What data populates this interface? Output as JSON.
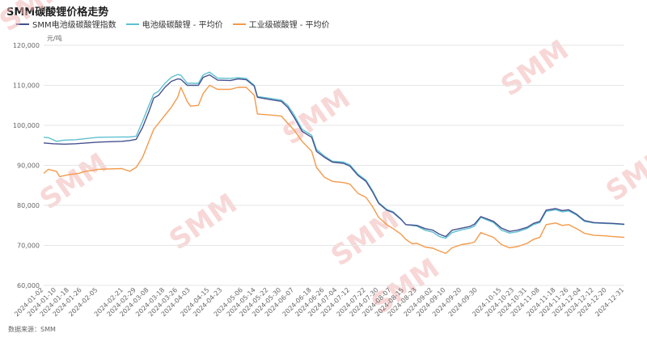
{
  "title": "SMM碳酸锂价格走势",
  "unit": "元/吨",
  "source": "数据来源：SMM",
  "watermark": "SMM",
  "colors": {
    "index": "#45518f",
    "battery": "#5fc0d0",
    "industrial": "#f39a4c",
    "grid": "#e6e6e6",
    "watermark": "#f0b0b0"
  },
  "chart_data": {
    "type": "line",
    "ylim": [
      60000,
      120000
    ],
    "yticks": [
      "60,000",
      "70,000",
      "80,000",
      "90,000",
      "100,000",
      "110,000",
      "120,000"
    ],
    "ytick_values": [
      60000,
      70000,
      80000,
      90000,
      100000,
      110000,
      120000
    ],
    "xlim": [
      "2024-01-02",
      "2024-12-31"
    ],
    "x_tick_labels": [
      "2024-01-02",
      "2024-01-10",
      "2024-01-18",
      "2024-01-26",
      "2024-02-05",
      "2024-02-21",
      "2024-02-29",
      "2024-03-08",
      "2024-03-18",
      "2024-03-26",
      "2024-04-03",
      "2024-04-15",
      "2024-04-23",
      "2024-05-06",
      "2024-05-14",
      "2024-05-22",
      "2024-05-30",
      "2024-06-07",
      "2024-06-18",
      "2024-06-26",
      "2024-07-04",
      "2024-07-12",
      "2024-07-22",
      "2024-07-30",
      "2024-08-07",
      "2024-08-15",
      "2024-08-23",
      "2024-09-02",
      "2024-09-10",
      "2024-09-20",
      "2024-09-30",
      "2024-10-15",
      "2024-10-23",
      "2024-10-31",
      "2024-11-08",
      "2024-11-18",
      "2024-11-26",
      "2024-12-04",
      "2024-12-12",
      "2024-12-20",
      "2024-12-31"
    ],
    "legend_position": "top-left",
    "grid": true,
    "series": [
      {
        "name": "SMM电池级碳酸锂指数",
        "color_key": "index",
        "points": [
          [
            "2024-01-02",
            95600
          ],
          [
            "2024-01-08",
            95400
          ],
          [
            "2024-01-15",
            95300
          ],
          [
            "2024-01-22",
            95400
          ],
          [
            "2024-01-29",
            95600
          ],
          [
            "2024-02-05",
            95800
          ],
          [
            "2024-02-20",
            96000
          ],
          [
            "2024-02-25",
            96200
          ],
          [
            "2024-02-29",
            96500
          ],
          [
            "2024-03-04",
            99500
          ],
          [
            "2024-03-08",
            103500
          ],
          [
            "2024-03-11",
            106800
          ],
          [
            "2024-03-14",
            107500
          ],
          [
            "2024-03-18",
            109500
          ],
          [
            "2024-03-22",
            111000
          ],
          [
            "2024-03-26",
            111600
          ],
          [
            "2024-03-28",
            111500
          ],
          [
            "2024-04-01",
            110000
          ],
          [
            "2024-04-08",
            110000
          ],
          [
            "2024-04-11",
            112000
          ],
          [
            "2024-04-15",
            112600
          ],
          [
            "2024-04-20",
            111300
          ],
          [
            "2024-04-28",
            111200
          ],
          [
            "2024-05-03",
            111600
          ],
          [
            "2024-05-08",
            111400
          ],
          [
            "2024-05-13",
            109800
          ],
          [
            "2024-05-15",
            107000
          ],
          [
            "2024-05-22",
            106500
          ],
          [
            "2024-05-30",
            106000
          ],
          [
            "2024-06-03",
            104500
          ],
          [
            "2024-06-07",
            102000
          ],
          [
            "2024-06-12",
            98500
          ],
          [
            "2024-06-18",
            97000
          ],
          [
            "2024-06-21",
            93500
          ],
          [
            "2024-06-26",
            92000
          ],
          [
            "2024-07-01",
            90800
          ],
          [
            "2024-07-08",
            90500
          ],
          [
            "2024-07-12",
            89800
          ],
          [
            "2024-07-17",
            87500
          ],
          [
            "2024-07-22",
            86000
          ],
          [
            "2024-07-26",
            83500
          ],
          [
            "2024-07-30",
            80500
          ],
          [
            "2024-08-04",
            78800
          ],
          [
            "2024-08-08",
            78200
          ],
          [
            "2024-08-13",
            76500
          ],
          [
            "2024-08-16",
            75200
          ],
          [
            "2024-08-23",
            75000
          ],
          [
            "2024-08-28",
            74200
          ],
          [
            "2024-09-02",
            73800
          ],
          [
            "2024-09-06",
            72800
          ],
          [
            "2024-09-10",
            72200
          ],
          [
            "2024-09-14",
            73800
          ],
          [
            "2024-09-20",
            74300
          ],
          [
            "2024-09-25",
            74700
          ],
          [
            "2024-09-28",
            75300
          ],
          [
            "2024-10-02",
            77200
          ],
          [
            "2024-10-10",
            76000
          ],
          [
            "2024-10-15",
            74300
          ],
          [
            "2024-10-20",
            73500
          ],
          [
            "2024-10-25",
            73800
          ],
          [
            "2024-10-31",
            74500
          ],
          [
            "2024-11-04",
            75500
          ],
          [
            "2024-11-08",
            76000
          ],
          [
            "2024-11-12",
            78800
          ],
          [
            "2024-11-18",
            79200
          ],
          [
            "2024-11-22",
            78700
          ],
          [
            "2024-11-26",
            78900
          ],
          [
            "2024-12-01",
            77800
          ],
          [
            "2024-12-06",
            76200
          ],
          [
            "2024-12-12",
            75700
          ],
          [
            "2024-12-18",
            75600
          ],
          [
            "2024-12-24",
            75500
          ],
          [
            "2024-12-31",
            75300
          ]
        ]
      },
      {
        "name": "电池级碳酸锂 - 平均价",
        "color_key": "battery",
        "points": [
          [
            "2024-01-02",
            97000
          ],
          [
            "2024-01-05",
            96900
          ],
          [
            "2024-01-10",
            96000
          ],
          [
            "2024-01-15",
            96300
          ],
          [
            "2024-01-22",
            96400
          ],
          [
            "2024-01-29",
            96700
          ],
          [
            "2024-02-05",
            97000
          ],
          [
            "2024-02-20",
            97100
          ],
          [
            "2024-02-25",
            97100
          ],
          [
            "2024-02-29",
            97300
          ],
          [
            "2024-03-04",
            101000
          ],
          [
            "2024-03-08",
            105000
          ],
          [
            "2024-03-11",
            107800
          ],
          [
            "2024-03-14",
            108500
          ],
          [
            "2024-03-18",
            110500
          ],
          [
            "2024-03-22",
            112000
          ],
          [
            "2024-03-26",
            112700
          ],
          [
            "2024-03-28",
            112500
          ],
          [
            "2024-04-01",
            110500
          ],
          [
            "2024-04-08",
            110500
          ],
          [
            "2024-04-11",
            112600
          ],
          [
            "2024-04-15",
            113300
          ],
          [
            "2024-04-20",
            111800
          ],
          [
            "2024-04-28",
            111700
          ],
          [
            "2024-05-03",
            111900
          ],
          [
            "2024-05-08",
            111700
          ],
          [
            "2024-05-13",
            110000
          ],
          [
            "2024-05-15",
            107200
          ],
          [
            "2024-05-22",
            106800
          ],
          [
            "2024-05-30",
            106300
          ],
          [
            "2024-06-03",
            105000
          ],
          [
            "2024-06-07",
            102600
          ],
          [
            "2024-06-12",
            99000
          ],
          [
            "2024-06-18",
            97500
          ],
          [
            "2024-06-21",
            94000
          ],
          [
            "2024-06-26",
            92300
          ],
          [
            "2024-07-01",
            91000
          ],
          [
            "2024-07-08",
            90800
          ],
          [
            "2024-07-12",
            90100
          ],
          [
            "2024-07-17",
            87800
          ],
          [
            "2024-07-22",
            86300
          ],
          [
            "2024-07-26",
            83800
          ],
          [
            "2024-07-30",
            80700
          ],
          [
            "2024-08-04",
            79000
          ],
          [
            "2024-08-08",
            78400
          ],
          [
            "2024-08-13",
            76600
          ],
          [
            "2024-08-16",
            75200
          ],
          [
            "2024-08-23",
            74800
          ],
          [
            "2024-08-28",
            73800
          ],
          [
            "2024-09-02",
            73300
          ],
          [
            "2024-09-06",
            72200
          ],
          [
            "2024-09-10",
            71800
          ],
          [
            "2024-09-14",
            73200
          ],
          [
            "2024-09-20",
            73900
          ],
          [
            "2024-09-25",
            74300
          ],
          [
            "2024-09-28",
            74800
          ],
          [
            "2024-10-02",
            77000
          ],
          [
            "2024-10-10",
            75700
          ],
          [
            "2024-10-15",
            73800
          ],
          [
            "2024-10-20",
            73100
          ],
          [
            "2024-10-25",
            73400
          ],
          [
            "2024-10-31",
            74200
          ],
          [
            "2024-11-04",
            75200
          ],
          [
            "2024-11-08",
            75700
          ],
          [
            "2024-11-12",
            78500
          ],
          [
            "2024-11-18",
            78900
          ],
          [
            "2024-11-22",
            78400
          ],
          [
            "2024-11-26",
            78600
          ],
          [
            "2024-12-01",
            77600
          ],
          [
            "2024-12-06",
            76000
          ],
          [
            "2024-12-12",
            75600
          ],
          [
            "2024-12-18",
            75500
          ],
          [
            "2024-12-24",
            75400
          ],
          [
            "2024-12-31",
            75200
          ]
        ]
      },
      {
        "name": "工业级碳酸锂 - 平均价",
        "color_key": "industrial",
        "points": [
          [
            "2024-01-02",
            88000
          ],
          [
            "2024-01-05",
            89000
          ],
          [
            "2024-01-10",
            88500
          ],
          [
            "2024-01-12",
            87200
          ],
          [
            "2024-01-18",
            87700
          ],
          [
            "2024-01-24",
            88000
          ],
          [
            "2024-01-28",
            88500
          ],
          [
            "2024-02-01",
            88700
          ],
          [
            "2024-02-05",
            89000
          ],
          [
            "2024-02-20",
            89200
          ],
          [
            "2024-02-25",
            88500
          ],
          [
            "2024-02-29",
            89500
          ],
          [
            "2024-03-04",
            92000
          ],
          [
            "2024-03-08",
            96000
          ],
          [
            "2024-03-11",
            99000
          ],
          [
            "2024-03-14",
            100500
          ],
          [
            "2024-03-18",
            102500
          ],
          [
            "2024-03-22",
            104500
          ],
          [
            "2024-03-26",
            107000
          ],
          [
            "2024-03-28",
            109500
          ],
          [
            "2024-04-01",
            106000
          ],
          [
            "2024-04-03",
            104800
          ],
          [
            "2024-04-08",
            105000
          ],
          [
            "2024-04-11",
            108000
          ],
          [
            "2024-04-15",
            110000
          ],
          [
            "2024-04-20",
            109000
          ],
          [
            "2024-04-28",
            109000
          ],
          [
            "2024-05-03",
            109500
          ],
          [
            "2024-05-08",
            109500
          ],
          [
            "2024-05-13",
            107500
          ],
          [
            "2024-05-15",
            102800
          ],
          [
            "2024-05-22",
            102600
          ],
          [
            "2024-05-30",
            102300
          ],
          [
            "2024-06-03",
            100500
          ],
          [
            "2024-06-07",
            98800
          ],
          [
            "2024-06-12",
            96000
          ],
          [
            "2024-06-18",
            93500
          ],
          [
            "2024-06-21",
            89500
          ],
          [
            "2024-06-26",
            87000
          ],
          [
            "2024-07-01",
            86000
          ],
          [
            "2024-07-08",
            85700
          ],
          [
            "2024-07-12",
            85300
          ],
          [
            "2024-07-17",
            83000
          ],
          [
            "2024-07-22",
            82000
          ],
          [
            "2024-07-26",
            79800
          ],
          [
            "2024-07-30",
            77000
          ],
          [
            "2024-08-04",
            75200
          ],
          [
            "2024-08-08",
            74200
          ],
          [
            "2024-08-13",
            72800
          ],
          [
            "2024-08-16",
            71500
          ],
          [
            "2024-08-20",
            70400
          ],
          [
            "2024-08-23",
            70500
          ],
          [
            "2024-08-28",
            69600
          ],
          [
            "2024-09-02",
            69300
          ],
          [
            "2024-09-06",
            68600
          ],
          [
            "2024-09-10",
            68000
          ],
          [
            "2024-09-14",
            69400
          ],
          [
            "2024-09-20",
            70200
          ],
          [
            "2024-09-25",
            70500
          ],
          [
            "2024-09-28",
            70800
          ],
          [
            "2024-10-02",
            73200
          ],
          [
            "2024-10-10",
            72000
          ],
          [
            "2024-10-15",
            70200
          ],
          [
            "2024-10-20",
            69400
          ],
          [
            "2024-10-25",
            69700
          ],
          [
            "2024-10-31",
            70500
          ],
          [
            "2024-11-04",
            71500
          ],
          [
            "2024-11-08",
            72000
          ],
          [
            "2024-11-12",
            75200
          ],
          [
            "2024-11-18",
            75600
          ],
          [
            "2024-11-22",
            75000
          ],
          [
            "2024-11-26",
            75200
          ],
          [
            "2024-12-01",
            74200
          ],
          [
            "2024-12-06",
            73000
          ],
          [
            "2024-12-12",
            72500
          ],
          [
            "2024-12-18",
            72400
          ],
          [
            "2024-12-24",
            72200
          ],
          [
            "2024-12-31",
            72000
          ]
        ]
      }
    ]
  }
}
